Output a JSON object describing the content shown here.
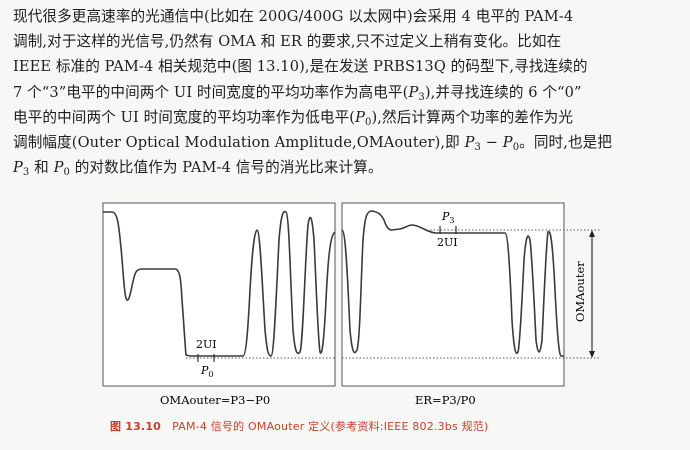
{
  "paragraph": {
    "lines": [
      [
        "现代很多更高速率的光通信中(比如在 200G/400G 以太网中)会采用 4 电平的 PAM-4"
      ],
      [
        "调制,对于这样的光信号,仍然有 OMA 和 ER 的要求,只不过定义上稍有变化。比如在"
      ],
      [
        "IEEE 标准的 PAM-4 相关规范中(图 13.10),是在发送 PRBS13Q 的码型下,寻找连续的"
      ],
      [
        "7 个“3”电平的中间两个 UI 时间宽度的平均功率作为高电平(",
        "P",
        "3",
        "),并寻找连续的 6 个“0”"
      ],
      [
        "电平的中间两个 UI 时间宽度的平均功率作为低电平(",
        "P",
        "0",
        "),然后计算两个功率的差作为光"
      ],
      [
        "调制幅度(Outer Optical Modulation Amplitude,OMAouter),即 ",
        "P",
        "3",
        " − ",
        "P",
        "0",
        "。同时,也是把"
      ],
      [
        "",
        "P",
        "3",
        " 和 ",
        "P",
        "0",
        " 的对数比值作为 PAM-4 信号的消光比来计算。"
      ]
    ]
  },
  "figure": {
    "left_panel": {
      "ui_label": "2UI",
      "p_symbol": "P",
      "p_sub": "0",
      "formula": "OMAouter=P3−P0"
    },
    "right_panel": {
      "ui_label": "2UI",
      "p_symbol": "P",
      "p_sub": "3",
      "vertical_label": "OMAouter",
      "formula": "ER=P3/P0"
    },
    "caption_prefix": "图 13.10",
    "caption_text": "PAM-4 信号的 OMAouter 定义(参考资料:IEEE 802.3bs 规范)",
    "colors": {
      "waveform": "#3a3a3a",
      "frame": "#555555",
      "caption": "#c8402a"
    }
  }
}
